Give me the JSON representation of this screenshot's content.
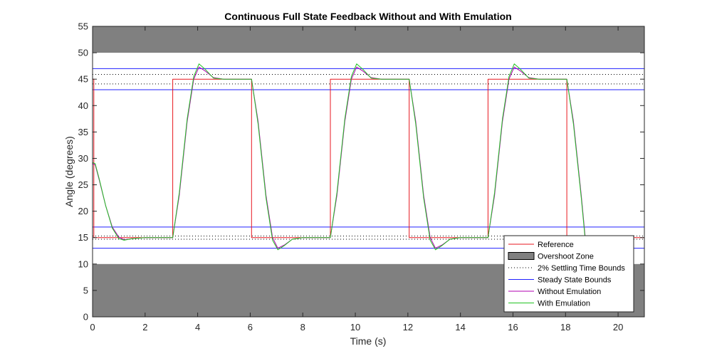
{
  "chart_data": {
    "type": "line",
    "title": "Continuous Full State Feedback Without and With Emulation",
    "xlabel": "Time (s)",
    "ylabel": "Angle (degrees)",
    "xlim": [
      0,
      21
    ],
    "ylim": [
      0,
      55
    ],
    "xticks": [
      0,
      2,
      4,
      6,
      8,
      10,
      12,
      14,
      16,
      18,
      20
    ],
    "yticks": [
      0,
      5,
      10,
      15,
      20,
      25,
      30,
      35,
      40,
      45,
      50,
      55
    ],
    "grid": false,
    "legend_position": "bottom-right",
    "overshoot_zones": [
      {
        "y_from": 50,
        "y_to": 55
      },
      {
        "y_from": 0,
        "y_to": 10
      }
    ],
    "settling_bounds": [
      14.7,
      15.3,
      44.1,
      45.9
    ],
    "steady_state_bounds": [
      13,
      17,
      43,
      47
    ],
    "series": [
      {
        "name": "Reference",
        "color": "#e8171f",
        "x": [
          0,
          0.05,
          0.05,
          3.05,
          3.05,
          6.05,
          6.05,
          9.05,
          9.05,
          12.05,
          12.05,
          15.05,
          15.05,
          18.05,
          18.05,
          21
        ],
        "y": [
          45,
          45,
          15,
          15,
          45,
          45,
          15,
          15,
          45,
          45,
          15,
          15,
          45,
          45,
          15,
          15
        ]
      },
      {
        "name": "Without Emulation",
        "color": "#b000b0",
        "x": [
          0,
          0.1,
          0.25,
          0.5,
          0.75,
          1.0,
          1.2,
          1.5,
          2.0,
          2.5,
          3.05,
          3.3,
          3.6,
          3.85,
          4.05,
          4.3,
          4.6,
          5.0,
          5.5,
          6.05,
          6.3,
          6.6,
          6.85,
          7.05,
          7.3,
          7.6,
          8.0,
          8.5,
          9.05,
          9.3,
          9.6,
          9.85,
          10.05,
          10.3,
          10.6,
          11.0,
          11.5,
          12.05,
          12.3,
          12.6,
          12.85,
          13.05,
          13.3,
          13.6,
          14.0,
          14.5,
          15.05,
          15.3,
          15.6,
          15.85,
          16.05,
          16.3,
          16.6,
          17.0,
          17.5,
          18.05,
          18.3,
          18.6,
          18.75
        ],
        "y": [
          29,
          28.8,
          26,
          21,
          17,
          15.1,
          14.6,
          14.8,
          15,
          15,
          15,
          23,
          37,
          45,
          47.3,
          46.5,
          45.3,
          45,
          45,
          45,
          37,
          23,
          15,
          13,
          13.6,
          14.7,
          15,
          15,
          15,
          23,
          37,
          45,
          47.3,
          46.5,
          45.3,
          45,
          45,
          45,
          37,
          23,
          15,
          13,
          13.6,
          14.7,
          15,
          15,
          15,
          23,
          37,
          45,
          47.3,
          46.5,
          45.3,
          45,
          45,
          45,
          37,
          23,
          15
        ]
      },
      {
        "name": "With Emulation",
        "color": "#22c322",
        "x": [
          0,
          0.1,
          0.25,
          0.5,
          0.75,
          1.0,
          1.2,
          1.5,
          2.0,
          2.5,
          3.05,
          3.3,
          3.6,
          3.85,
          4.05,
          4.3,
          4.6,
          5.0,
          5.5,
          6.05,
          6.3,
          6.6,
          6.85,
          7.05,
          7.3,
          7.6,
          8.0,
          8.5,
          9.05,
          9.3,
          9.6,
          9.85,
          10.05,
          10.3,
          10.6,
          11.0,
          11.5,
          12.05,
          12.3,
          12.6,
          12.85,
          13.05,
          13.3,
          13.6,
          14.0,
          14.5,
          15.05,
          15.3,
          15.6,
          15.85,
          16.05,
          16.3,
          16.6,
          17.0,
          17.5,
          18.05,
          18.3,
          18.6,
          18.75
        ],
        "y": [
          29.2,
          29,
          26.2,
          21,
          16.8,
          14.8,
          14.5,
          14.8,
          15,
          15,
          15,
          23.5,
          37.5,
          45.5,
          47.9,
          46.8,
          45.2,
          45,
          45,
          45,
          36.5,
          22.5,
          14.5,
          12.7,
          13.5,
          14.7,
          15,
          15,
          15,
          23.5,
          37.5,
          45.5,
          47.9,
          46.8,
          45.2,
          45,
          45,
          45,
          36.5,
          22.5,
          14.5,
          12.7,
          13.5,
          14.7,
          15,
          15,
          15,
          23.5,
          37.5,
          45.5,
          47.9,
          46.8,
          45.2,
          45,
          45,
          45,
          36.5,
          22.5,
          14.5
        ]
      }
    ],
    "legend": [
      {
        "label": "Reference",
        "style": "line",
        "color": "#e8171f"
      },
      {
        "label": "Overshoot Zone",
        "style": "patch",
        "color": "#808080"
      },
      {
        "label": "2% Settling Time Bounds",
        "style": "dotted",
        "color": "#000000"
      },
      {
        "label": "Steady State Bounds",
        "style": "line",
        "color": "#2020ff"
      },
      {
        "label": "Without Emulation",
        "style": "line",
        "color": "#b000b0"
      },
      {
        "label": "With Emulation",
        "style": "line",
        "color": "#22c322"
      }
    ]
  }
}
